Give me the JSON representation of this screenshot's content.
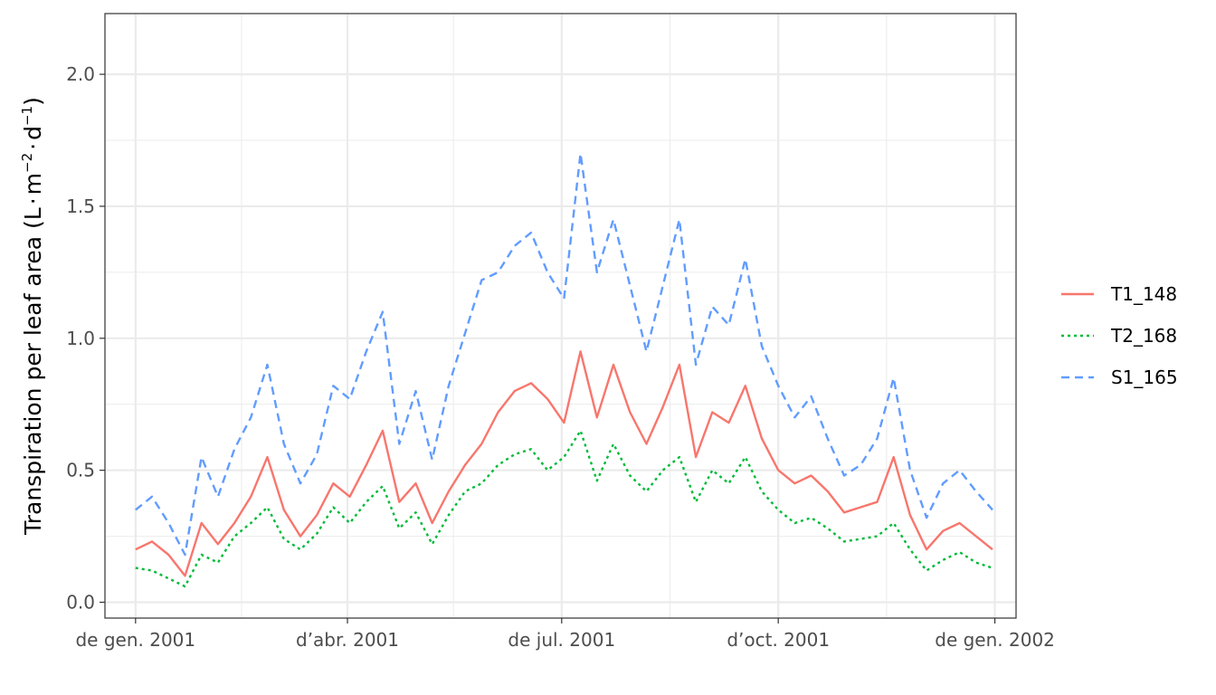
{
  "chart_data": {
    "type": "line",
    "title": "",
    "xlabel": "",
    "ylabel": "Transpiration per leaf area (L·m⁻²·d⁻¹)",
    "ylabel_parts": {
      "prefix": "Transpiration per leaf area (L",
      "dot": "·",
      "m": "m",
      "m_exp": "−2",
      "d": "d",
      "d_exp": "−1",
      "suffix": ")"
    },
    "xlim": [
      "2000-12-19",
      "2002-01-10"
    ],
    "ylim": [
      -0.06,
      2.23
    ],
    "x_ticks": [
      {
        "date": "2001-01-01",
        "label": "de gen. 2001"
      },
      {
        "date": "2001-04-01",
        "label": "d’abr. 2001"
      },
      {
        "date": "2001-07-01",
        "label": "de jul. 2001"
      },
      {
        "date": "2001-10-01",
        "label": "d’oct. 2001"
      },
      {
        "date": "2002-01-01",
        "label": "de gen. 2002"
      }
    ],
    "x_minor": [
      "2001-02-15",
      "2001-05-16",
      "2001-08-16",
      "2001-11-16"
    ],
    "y_ticks": [
      {
        "value": 0.0,
        "label": "0.0"
      },
      {
        "value": 0.5,
        "label": "0.5"
      },
      {
        "value": 1.0,
        "label": "1.0"
      },
      {
        "value": 1.5,
        "label": "1.5"
      },
      {
        "value": 2.0,
        "label": "2.0"
      }
    ],
    "y_minor": [
      0.25,
      0.75,
      1.25,
      1.75
    ],
    "grid": true,
    "legend_position": "right",
    "x": [
      "2001-01-01",
      "2001-01-08",
      "2001-01-15",
      "2001-01-22",
      "2001-01-29",
      "2001-02-05",
      "2001-02-12",
      "2001-02-19",
      "2001-02-26",
      "2001-03-05",
      "2001-03-12",
      "2001-03-19",
      "2001-03-26",
      "2001-04-02",
      "2001-04-09",
      "2001-04-16",
      "2001-04-23",
      "2001-04-30",
      "2001-05-07",
      "2001-05-14",
      "2001-05-21",
      "2001-05-28",
      "2001-06-04",
      "2001-06-11",
      "2001-06-18",
      "2001-06-25",
      "2001-07-02",
      "2001-07-09",
      "2001-07-16",
      "2001-07-23",
      "2001-07-30",
      "2001-08-06",
      "2001-08-13",
      "2001-08-20",
      "2001-08-27",
      "2001-09-03",
      "2001-09-10",
      "2001-09-17",
      "2001-09-24",
      "2001-10-01",
      "2001-10-08",
      "2001-10-15",
      "2001-10-22",
      "2001-10-29",
      "2001-11-05",
      "2001-11-12",
      "2001-11-19",
      "2001-11-26",
      "2001-12-03",
      "2001-12-10",
      "2001-12-17",
      "2001-12-24",
      "2001-12-31"
    ],
    "series": [
      {
        "name": "T1_148",
        "color": "#F8766D",
        "dash": "solid",
        "values": [
          0.2,
          0.23,
          0.18,
          0.1,
          0.3,
          0.22,
          0.3,
          0.4,
          0.55,
          0.35,
          0.25,
          0.33,
          0.45,
          0.4,
          0.52,
          0.65,
          0.38,
          0.45,
          0.3,
          0.42,
          0.52,
          0.6,
          0.72,
          0.8,
          0.83,
          0.77,
          0.68,
          0.95,
          0.7,
          0.9,
          0.72,
          0.6,
          0.74,
          0.9,
          0.55,
          0.72,
          0.68,
          0.82,
          0.62,
          0.5,
          0.45,
          0.48,
          0.42,
          0.34,
          0.36,
          0.38,
          0.55,
          0.33,
          0.2,
          0.27,
          0.3,
          0.25,
          0.2
        ]
      },
      {
        "name": "T2_168",
        "color": "#00BA38",
        "dash": "dotted",
        "values": [
          0.13,
          0.12,
          0.09,
          0.06,
          0.18,
          0.15,
          0.25,
          0.3,
          0.36,
          0.24,
          0.2,
          0.26,
          0.36,
          0.3,
          0.38,
          0.44,
          0.28,
          0.34,
          0.22,
          0.33,
          0.42,
          0.45,
          0.52,
          0.56,
          0.58,
          0.5,
          0.55,
          0.65,
          0.46,
          0.6,
          0.48,
          0.42,
          0.5,
          0.55,
          0.38,
          0.5,
          0.45,
          0.55,
          0.42,
          0.35,
          0.3,
          0.32,
          0.28,
          0.23,
          0.24,
          0.25,
          0.3,
          0.2,
          0.12,
          0.16,
          0.19,
          0.15,
          0.13
        ]
      },
      {
        "name": "S1_165",
        "color": "#619CFF",
        "dash": "dashed",
        "values": [
          0.35,
          0.4,
          0.3,
          0.18,
          0.55,
          0.4,
          0.58,
          0.7,
          0.9,
          0.6,
          0.45,
          0.56,
          0.82,
          0.77,
          0.95,
          1.1,
          0.6,
          0.8,
          0.54,
          0.82,
          1.02,
          1.22,
          1.25,
          1.35,
          1.4,
          1.25,
          1.15,
          1.7,
          1.25,
          1.45,
          1.2,
          0.95,
          1.2,
          1.45,
          0.9,
          1.12,
          1.05,
          1.3,
          0.97,
          0.82,
          0.7,
          0.78,
          0.62,
          0.48,
          0.52,
          0.62,
          0.85,
          0.5,
          0.32,
          0.45,
          0.5,
          0.42,
          0.35
        ]
      }
    ]
  }
}
